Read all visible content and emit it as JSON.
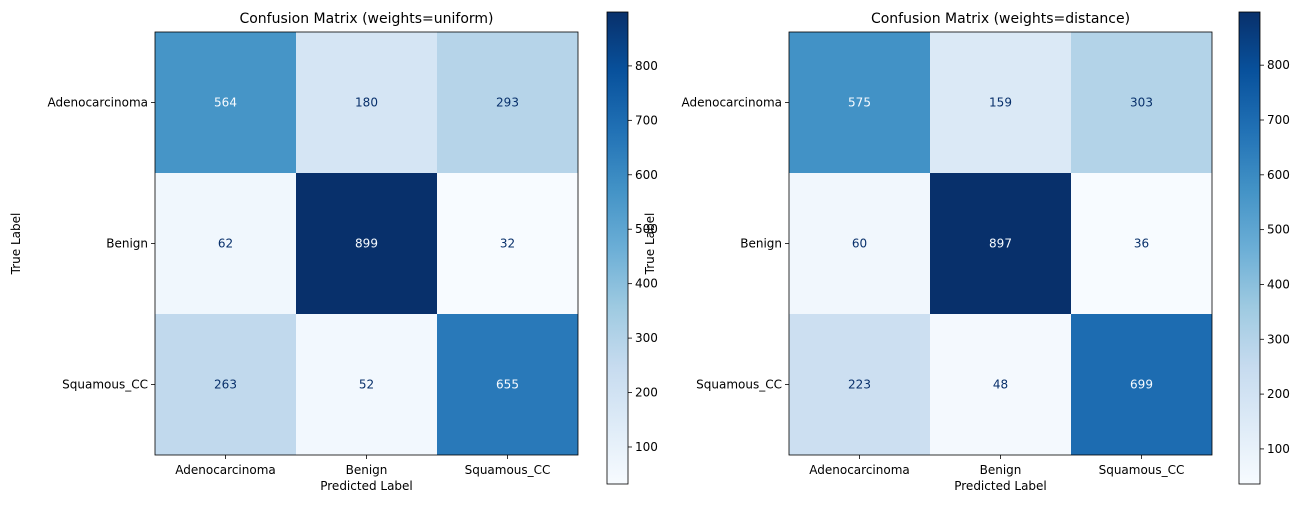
{
  "chart_data": [
    {
      "type": "heatmap",
      "title": "Confusion Matrix (weights=uniform)",
      "xlabel": "Predicted Label",
      "ylabel": "True Label",
      "x_categories": [
        "Adenocarcinoma",
        "Benign",
        "Squamous_CC"
      ],
      "y_categories": [
        "Adenocarcinoma",
        "Benign",
        "Squamous_CC"
      ],
      "values": [
        [
          564,
          180,
          293
        ],
        [
          62,
          899,
          32
        ],
        [
          263,
          52,
          655
        ]
      ],
      "colormap": "Blues",
      "colorbar_ticks": [
        100,
        200,
        300,
        400,
        500,
        600,
        700,
        800
      ],
      "vmin": 32,
      "vmax": 899
    },
    {
      "type": "heatmap",
      "title": "Confusion Matrix (weights=distance)",
      "xlabel": "Predicted Label",
      "ylabel": "True Label",
      "x_categories": [
        "Adenocarcinoma",
        "Benign",
        "Squamous_CC"
      ],
      "y_categories": [
        "Adenocarcinoma",
        "Benign",
        "Squamous_CC"
      ],
      "values": [
        [
          575,
          159,
          303
        ],
        [
          60,
          897,
          36
        ],
        [
          223,
          48,
          699
        ]
      ],
      "colormap": "Blues",
      "colorbar_ticks": [
        100,
        200,
        300,
        400,
        500,
        600,
        700,
        800
      ],
      "vmin": 36,
      "vmax": 897
    }
  ]
}
